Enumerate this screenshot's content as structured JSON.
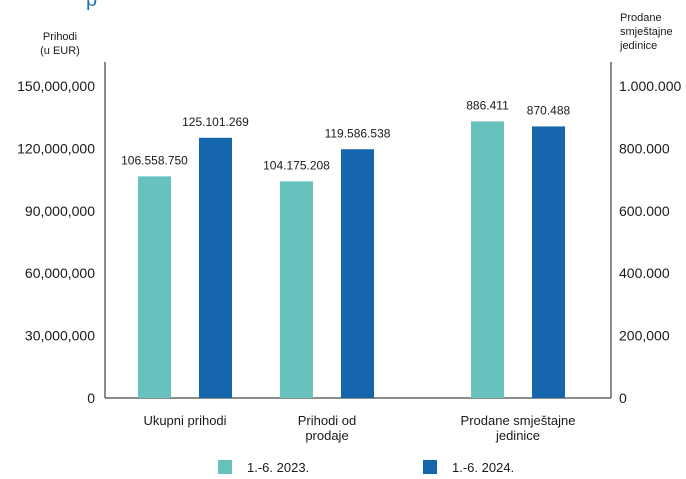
{
  "chart_data": {
    "type": "bar",
    "title_fragment": "p",
    "left_axis": {
      "title_lines": [
        "Prihodi",
        "(u EUR)"
      ],
      "ticks": [
        "0",
        "30,000,000",
        "60,000,000",
        "90,000,000",
        "120,000,000",
        "150,000,000"
      ],
      "tick_values": [
        0,
        30000000,
        60000000,
        90000000,
        120000000,
        150000000
      ],
      "ylim": [
        0,
        150000000
      ]
    },
    "right_axis": {
      "title_lines": [
        "Prodane",
        "smještajne",
        "jedinice"
      ],
      "ticks": [
        "0",
        "200,000",
        "400.000",
        "600.000",
        "800.000",
        "1.000.000"
      ],
      "tick_values": [
        0,
        200000,
        400000,
        600000,
        800000,
        1000000
      ],
      "ylim": [
        0,
        1000000
      ]
    },
    "categories": [
      {
        "label_lines": [
          "Ukupni prihodi"
        ],
        "axis": "left"
      },
      {
        "label_lines": [
          "Prihodi od",
          "prodaje"
        ],
        "axis": "left"
      },
      {
        "label_lines": [
          "Prodane smještajne",
          "jedinice"
        ],
        "axis": "right"
      }
    ],
    "series": [
      {
        "name": "1.-6. 2023.",
        "color": "#67c2bd",
        "values": [
          106558750,
          104175208,
          886411
        ],
        "labels": [
          "106.558.750",
          "104.175.208",
          "886.411"
        ]
      },
      {
        "name": "1.-6. 2024.",
        "color": "#1565ad",
        "values": [
          125101269,
          119586538,
          870488
        ],
        "labels": [
          "125.101.269",
          "119.586.538",
          "870.488"
        ]
      }
    ],
    "legend": "bottom",
    "grid": false
  }
}
